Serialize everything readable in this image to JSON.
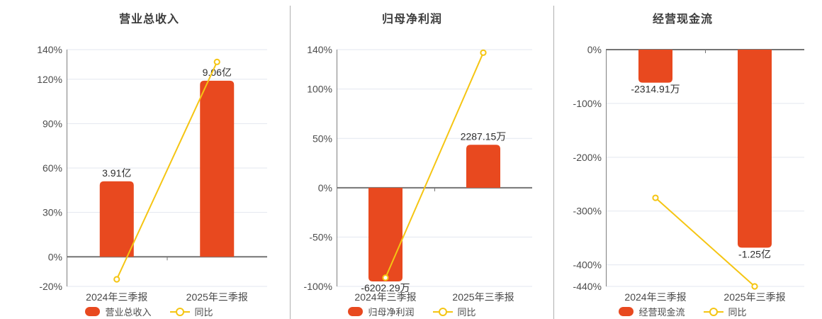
{
  "colors": {
    "background": "#ffffff",
    "bar": "#e8491f",
    "line": "#f5c513",
    "grid": "#e3e7ef",
    "axis": "#747474",
    "axis_light": "#7f7f7f",
    "separator": "#b0b0b0",
    "title_text": "#3c3c3c",
    "tick_text": "#4d4d4d",
    "category_text": "#484848",
    "value_text": "#2e2e2e",
    "legend_text": "#4b4b4b",
    "marker_fill": "#ffffff"
  },
  "chart_data": [
    {
      "type": "bar+line",
      "title": "营业总收入",
      "categories": [
        "2024年三季报",
        "2025年三季报"
      ],
      "y_axis": {
        "ticks": [
          140,
          120,
          90,
          60,
          30,
          0,
          -20
        ],
        "min": -20,
        "max": 140,
        "unit": "%"
      },
      "ylim": [
        -20,
        140
      ],
      "series": [
        {
          "name": "营业总收入",
          "kind": "bar",
          "value_labels": [
            "3.91亿",
            "9.06亿"
          ],
          "axis_pct": [
            51,
            119
          ]
        },
        {
          "name": "同比",
          "kind": "line",
          "axis_pct": [
            -15.2,
            131.7
          ]
        }
      ],
      "legend": [
        "营业总收入",
        "同比"
      ]
    },
    {
      "type": "bar+line",
      "title": "归母净利润",
      "categories": [
        "2024年三季报",
        "2025年三季报"
      ],
      "y_axis": {
        "ticks": [
          140,
          100,
          50,
          0,
          -50,
          -100
        ],
        "min": -100,
        "max": 140,
        "unit": "%"
      },
      "ylim": [
        -100,
        140
      ],
      "series": [
        {
          "name": "归母净利润",
          "kind": "bar",
          "value_labels": [
            "-6202.29万",
            "2287.15万"
          ],
          "axis_pct": [
            -95,
            43.5
          ]
        },
        {
          "name": "同比",
          "kind": "line",
          "axis_pct": [
            -91.2,
            136.9
          ]
        }
      ],
      "legend": [
        "归母净利润",
        "同比"
      ]
    },
    {
      "type": "bar+line",
      "title": "经营现金流",
      "categories": [
        "2024年三季报",
        "2025年三季报"
      ],
      "y_axis": {
        "ticks": [
          0,
          -100,
          -200,
          -300,
          -400,
          -440
        ],
        "min": -440,
        "max": 0,
        "unit": "%"
      },
      "ylim": [
        -440,
        0
      ],
      "series": [
        {
          "name": "经营现金流",
          "kind": "bar",
          "value_labels": [
            "-2314.91万",
            "-1.25亿"
          ],
          "axis_pct": [
            -61.5,
            -368
          ]
        },
        {
          "name": "同比",
          "kind": "line",
          "axis_pct": [
            -275.4,
            -440
          ]
        }
      ],
      "legend": [
        "经营现金流",
        "同比"
      ]
    }
  ]
}
